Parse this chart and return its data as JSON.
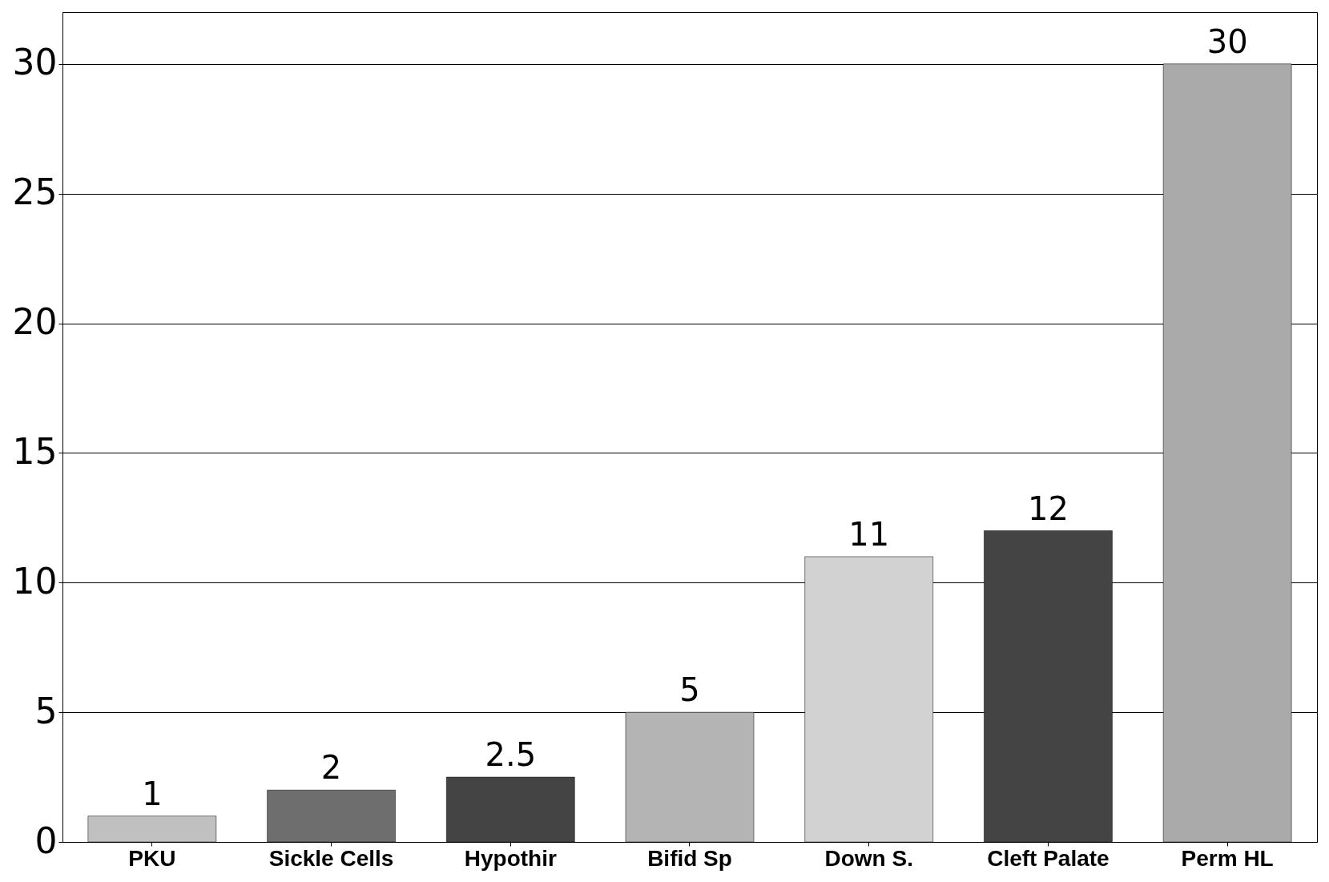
{
  "chart_data": {
    "type": "bar",
    "categories": [
      "PKU",
      "Sickle Cells",
      "Hypothir",
      "Bifid Sp",
      "Down S.",
      "Cleft Palate",
      "Perm HL"
    ],
    "values": [
      1,
      2,
      2.5,
      5,
      11,
      12,
      30
    ],
    "colors": [
      "#c0c0c0",
      "#6e6e6e",
      "#444444",
      "#b4b4b4",
      "#d2d2d2",
      "#444444",
      "#aaaaaa"
    ],
    "ylim": [
      0,
      32
    ],
    "yticks": [
      0,
      5,
      10,
      15,
      20,
      25,
      30
    ],
    "grid": "y",
    "data_labels": true
  }
}
